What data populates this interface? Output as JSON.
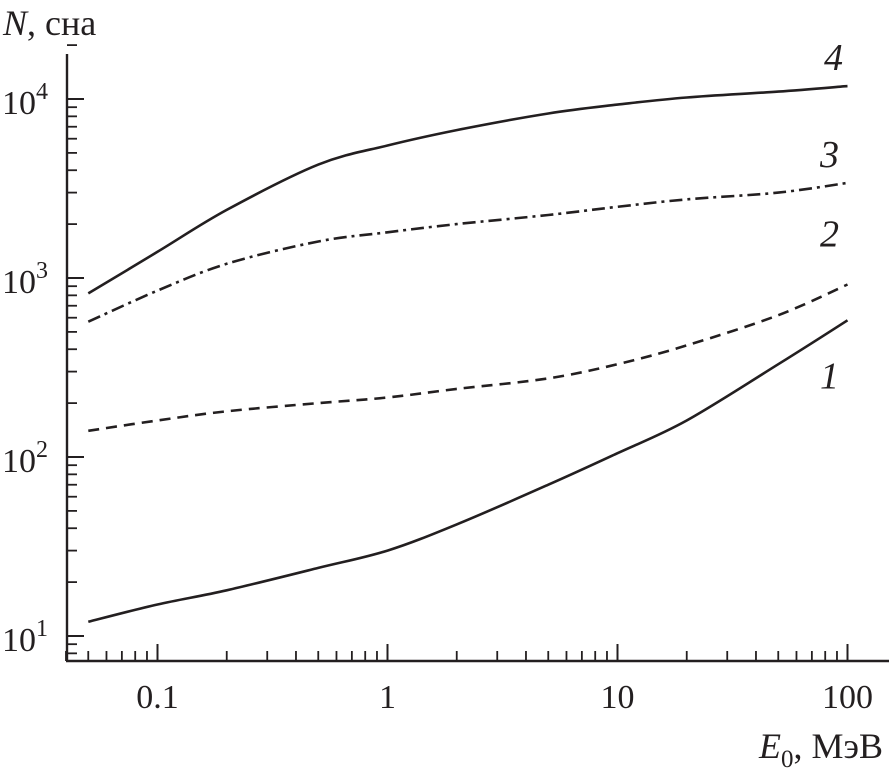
{
  "chart_data": {
    "type": "line",
    "xscale": "log",
    "yscale": "log",
    "xlim": [
      0.04,
      150
    ],
    "ylim": [
      8,
      25000
    ],
    "x_ticks": [
      "0.1",
      "1",
      "10",
      "100"
    ],
    "x_tick_values": [
      0.1,
      1,
      10,
      100
    ],
    "y_ticks": [
      {
        "base": "10",
        "exp": "1",
        "value": 10
      },
      {
        "base": "10",
        "exp": "2",
        "value": 100
      },
      {
        "base": "10",
        "exp": "3",
        "value": 1000
      },
      {
        "base": "10",
        "exp": "4",
        "value": 10000
      }
    ],
    "xlabel": {
      "main": "E",
      "sub": "0",
      "unit": ", МэВ"
    },
    "ylabel": {
      "main": "N",
      "unit": ", сна"
    },
    "grid": false,
    "legend": "inline labels at right ends of curves",
    "series": [
      {
        "name": "1",
        "style": "solid",
        "x": [
          0.05,
          0.1,
          0.2,
          0.5,
          1,
          2,
          5,
          10,
          20,
          50,
          100
        ],
        "y": [
          12,
          15,
          18,
          24,
          30,
          42,
          70,
          105,
          160,
          330,
          580
        ]
      },
      {
        "name": "2",
        "style": "dashed",
        "x": [
          0.05,
          0.1,
          0.2,
          0.5,
          1,
          2,
          5,
          10,
          20,
          50,
          100
        ],
        "y": [
          140,
          160,
          180,
          200,
          215,
          240,
          275,
          330,
          420,
          620,
          920
        ]
      },
      {
        "name": "3",
        "style": "dashdot",
        "x": [
          0.05,
          0.1,
          0.2,
          0.5,
          1,
          2,
          5,
          10,
          20,
          50,
          100
        ],
        "y": [
          570,
          850,
          1200,
          1600,
          1800,
          2000,
          2250,
          2500,
          2750,
          3000,
          3400
        ]
      },
      {
        "name": "4",
        "style": "solid",
        "x": [
          0.05,
          0.1,
          0.2,
          0.5,
          1,
          2,
          5,
          10,
          20,
          50,
          100
        ],
        "y": [
          820,
          1400,
          2400,
          4300,
          5500,
          6700,
          8300,
          9300,
          10200,
          11000,
          11800
        ]
      }
    ]
  }
}
